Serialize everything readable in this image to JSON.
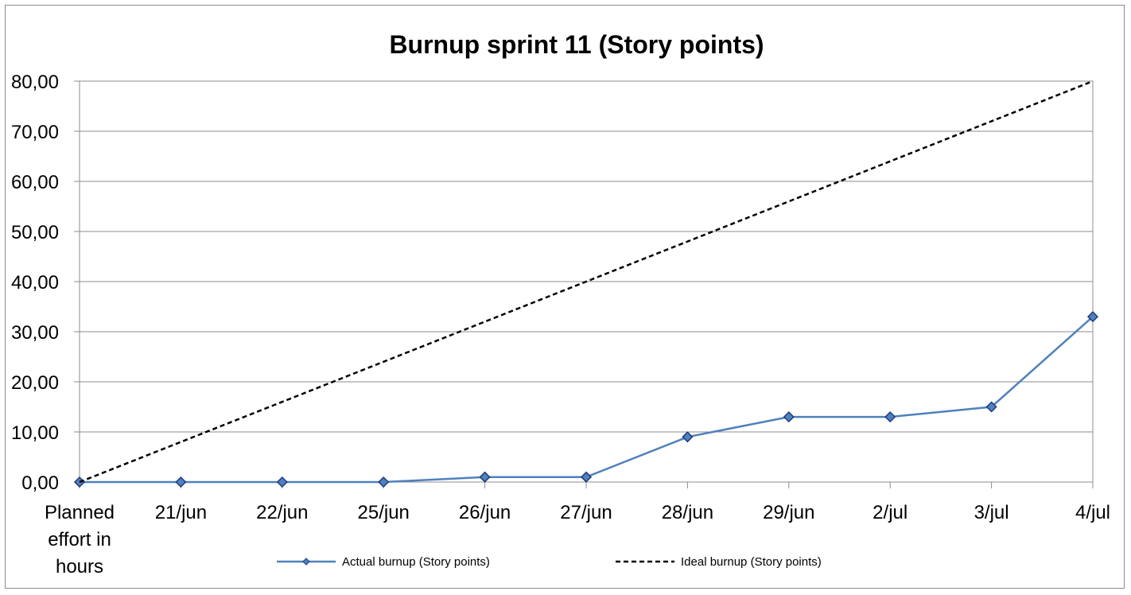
{
  "chart_data": {
    "type": "line",
    "title": "Burnup sprint 11 (Story points)",
    "xlabel": "",
    "ylabel": "",
    "categories": [
      "Planned effort in hours",
      "21/jun",
      "22/jun",
      "25/jun",
      "26/jun",
      "27/jun",
      "28/jun",
      "29/jun",
      "2/jul",
      "3/jul",
      "4/jul"
    ],
    "yticks": [
      "0,00",
      "10,00",
      "20,00",
      "30,00",
      "40,00",
      "50,00",
      "60,00",
      "70,00",
      "80,00"
    ],
    "ylim": [
      0,
      80
    ],
    "grid": "horizontal",
    "legend_position": "bottom",
    "series": [
      {
        "name": "Actual burnup (Story points)",
        "color": "#4f81bd",
        "marker": "diamond",
        "style": "solid",
        "values": [
          0,
          0,
          0,
          0,
          1,
          1,
          9,
          13,
          13,
          15,
          33
        ]
      },
      {
        "name": "Ideal burnup (Story points)",
        "color": "#000000",
        "marker": "none",
        "style": "dashed",
        "values": [
          0,
          8,
          16,
          24,
          32,
          40,
          48,
          56,
          64,
          72,
          80
        ]
      }
    ]
  }
}
